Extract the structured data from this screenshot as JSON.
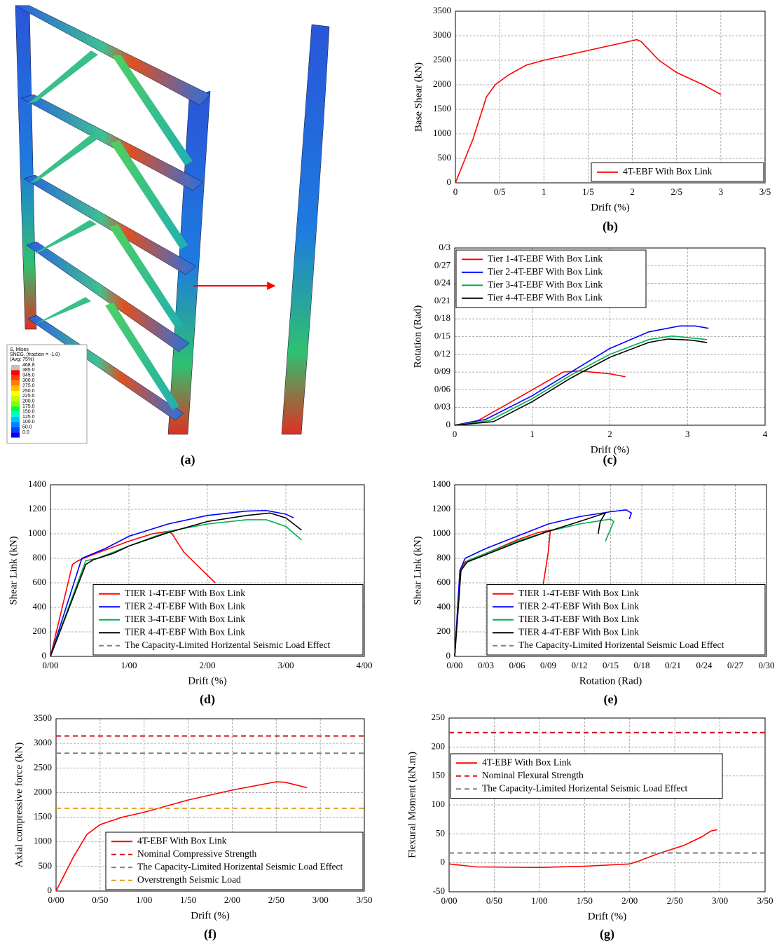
{
  "figure_a": {
    "label": "(a)",
    "legend": {
      "lines": [
        "S, Mises",
        "SNEG, (fraction = -1.0)",
        "(Avg: 75%)"
      ],
      "levels": [
        "468.8",
        "385.0",
        "345.0",
        "300.0",
        "275.0",
        "250.0",
        "225.0",
        "200.0",
        "175.0",
        "150.0",
        "125.0",
        "100.0",
        "50.0",
        "0.0"
      ]
    }
  },
  "chart_data": [
    {
      "type": "line",
      "label": "(b)",
      "xlabel": "Drift (%)",
      "ylabel": "Base Shear (kN)",
      "grid": true,
      "legend": "lower right",
      "xlim": [
        0,
        3.5
      ],
      "xticks": [
        0,
        {
          "value": 0.5,
          "label": "0/5"
        },
        1,
        {
          "value": 1.5,
          "label": "1/5"
        },
        2,
        {
          "value": 2.5,
          "label": "2/5"
        },
        3,
        {
          "value": 3.5,
          "label": "3/5"
        }
      ],
      "ylim": [
        0,
        3500
      ],
      "yticks": [
        0,
        500,
        1000,
        1500,
        2000,
        2500,
        3000,
        3500
      ],
      "series": [
        {
          "name": "4T-EBF With Box Link",
          "color": "#ff0000",
          "x": [
            0,
            0.2,
            0.35,
            0.45,
            0.6,
            0.8,
            1,
            1.5,
            2,
            2.05,
            2.1,
            2.3,
            2.5,
            2.8,
            3
          ],
          "values": [
            0,
            900,
            1750,
            2000,
            2200,
            2400,
            2500,
            2700,
            2900,
            2920,
            2880,
            2500,
            2250,
            2000,
            1800
          ]
        }
      ]
    },
    {
      "type": "line",
      "label": "(c)",
      "xlabel": "Drift (%)",
      "ylabel": "Rotation (Rad)",
      "grid": true,
      "legend": "upper left",
      "xlim": [
        0,
        4
      ],
      "xticks": [
        0,
        1,
        2,
        3,
        4
      ],
      "ylim": [
        0,
        0.3
      ],
      "yticks": [
        0,
        {
          "value": 0.03,
          "label": "0/03"
        },
        {
          "value": 0.06,
          "label": "0/06"
        },
        {
          "value": 0.09,
          "label": "0/09"
        },
        {
          "value": 0.12,
          "label": "0/12"
        },
        {
          "value": 0.15,
          "label": "0/15"
        },
        {
          "value": 0.18,
          "label": "0/18"
        },
        {
          "value": 0.21,
          "label": "0/21"
        },
        {
          "value": 0.24,
          "label": "0/24"
        },
        {
          "value": 0.27,
          "label": "0/27"
        },
        {
          "value": 0.3,
          "label": "0/3"
        }
      ],
      "series": [
        {
          "name": "Tier 1-4T-EBF With Box Link",
          "color": "#ff0000",
          "x": [
            0,
            0.3,
            0.6,
            1,
            1.4,
            1.6,
            2,
            2.2
          ],
          "values": [
            0,
            0.008,
            0.03,
            0.06,
            0.09,
            0.092,
            0.087,
            0.082
          ]
        },
        {
          "name": "Tier 2-4T-EBF With Box Link",
          "color": "#0000ff",
          "x": [
            0,
            0.4,
            1,
            1.5,
            2,
            2.5,
            2.9,
            3.1,
            3.27
          ],
          "values": [
            0,
            0.01,
            0.05,
            0.09,
            0.13,
            0.158,
            0.168,
            0.168,
            0.164
          ]
        },
        {
          "name": "Tier 3-4T-EBF With Box Link",
          "color": "#00b050",
          "x": [
            0,
            0.45,
            1,
            1.5,
            2,
            2.5,
            2.8,
            3.25
          ],
          "values": [
            0,
            0.008,
            0.045,
            0.085,
            0.12,
            0.145,
            0.151,
            0.145
          ]
        },
        {
          "name": "Tier 4-4T-EBF With Box Link",
          "color": "#000000",
          "x": [
            0,
            0.5,
            1,
            1.5,
            2,
            2.5,
            2.75,
            3.05,
            3.25
          ],
          "values": [
            0,
            0.006,
            0.04,
            0.08,
            0.115,
            0.14,
            0.146,
            0.144,
            0.14
          ]
        }
      ]
    },
    {
      "type": "line",
      "label": "(d)",
      "xlabel": "Drift (%)",
      "ylabel": "Shear Link (kN)",
      "grid": true,
      "legend": "lower right",
      "xlim": [
        0,
        4
      ],
      "xticks": [
        {
          "value": 0,
          "label": "0/00"
        },
        {
          "value": 1,
          "label": "1/00"
        },
        {
          "value": 2,
          "label": "2/00"
        },
        {
          "value": 3,
          "label": "3/00"
        },
        {
          "value": 4,
          "label": "4/00"
        }
      ],
      "ylim": [
        0,
        1400
      ],
      "yticks": [
        0,
        200,
        400,
        600,
        800,
        1000,
        1200,
        1400
      ],
      "series": [
        {
          "name": "TIER 1-4T-EBF With Box Link",
          "color": "#ff0000",
          "x": [
            0,
            0.15,
            0.28,
            0.35,
            0.5,
            1,
            1.3,
            1.5,
            1.55,
            1.7,
            2.1
          ],
          "values": [
            0,
            400,
            750,
            780,
            820,
            940,
            1000,
            1020,
            1000,
            850,
            600
          ]
        },
        {
          "name": "TIER 2-4T-EBF With Box Link",
          "color": "#0000ff",
          "x": [
            0,
            0.4,
            0.7,
            1,
            1.5,
            2,
            2.5,
            2.75,
            3,
            3.1
          ],
          "values": [
            0,
            800,
            880,
            980,
            1080,
            1150,
            1185,
            1190,
            1160,
            1130
          ]
        },
        {
          "name": "TIER 3-4T-EBF With Box Link",
          "color": "#00b050",
          "x": [
            0,
            0.45,
            0.6,
            1,
            1.5,
            2,
            2.5,
            2.75,
            3,
            3.2
          ],
          "values": [
            0,
            780,
            800,
            900,
            1020,
            1080,
            1115,
            1115,
            1060,
            950
          ]
        },
        {
          "name": "TIER 4-4T-EBF With Box Link",
          "color": "#000000",
          "x": [
            0,
            0.45,
            0.55,
            0.8,
            1,
            1.5,
            2,
            2.5,
            2.8,
            3,
            3.2
          ],
          "values": [
            0,
            750,
            790,
            840,
            900,
            1010,
            1100,
            1150,
            1170,
            1130,
            1030
          ]
        },
        {
          "name": "The Capacity-Limited Horizental Seismic Load Effect",
          "color": "#808080",
          "dash": true,
          "x": [],
          "values": []
        }
      ]
    },
    {
      "type": "line",
      "label": "(e)",
      "xlabel": "Rotation (Rad)",
      "ylabel": "Shear Link (kN)",
      "grid": true,
      "legend": "lower right",
      "xlim": [
        0,
        0.3
      ],
      "xticks": [
        {
          "value": 0,
          "label": "0/00"
        },
        {
          "value": 0.03,
          "label": "0/03"
        },
        {
          "value": 0.06,
          "label": "0/06"
        },
        {
          "value": 0.09,
          "label": "0/09"
        },
        {
          "value": 0.12,
          "label": "0/12"
        },
        {
          "value": 0.15,
          "label": "0/15"
        },
        {
          "value": 0.18,
          "label": "0/18"
        },
        {
          "value": 0.21,
          "label": "0/21"
        },
        {
          "value": 0.24,
          "label": "0/24"
        },
        {
          "value": 0.27,
          "label": "0/27"
        },
        {
          "value": 0.3,
          "label": "0/30"
        }
      ],
      "ylim": [
        0,
        1400
      ],
      "yticks": [
        0,
        200,
        400,
        600,
        800,
        1000,
        1200,
        1400
      ],
      "series": [
        {
          "name": "TIER 1-4T-EBF With Box Link",
          "color": "#ff0000",
          "x": [
            0,
            0.005,
            0.01,
            0.03,
            0.06,
            0.08,
            0.092,
            0.09,
            0.085
          ],
          "values": [
            0,
            700,
            770,
            840,
            950,
            1010,
            1030,
            850,
            580
          ]
        },
        {
          "name": "TIER 2-4T-EBF With Box Link",
          "color": "#0000ff",
          "x": [
            0,
            0.005,
            0.01,
            0.03,
            0.06,
            0.09,
            0.12,
            0.15,
            0.165,
            0.17,
            0.168
          ],
          "values": [
            0,
            700,
            800,
            880,
            980,
            1080,
            1140,
            1180,
            1195,
            1170,
            1120
          ]
        },
        {
          "name": "TIER 3-4T-EBF With Box Link",
          "color": "#00b050",
          "x": [
            0,
            0.006,
            0.012,
            0.03,
            0.06,
            0.09,
            0.12,
            0.15,
            0.153,
            0.145
          ],
          "values": [
            0,
            700,
            780,
            840,
            940,
            1020,
            1080,
            1120,
            1100,
            940
          ]
        },
        {
          "name": "TIER 4-4T-EBF With Box Link",
          "color": "#000000",
          "x": [
            0,
            0.006,
            0.012,
            0.03,
            0.06,
            0.09,
            0.12,
            0.145,
            0.14,
            0.138
          ],
          "values": [
            0,
            700,
            770,
            830,
            930,
            1020,
            1100,
            1170,
            1100,
            1000
          ]
        },
        {
          "name": "The Capacity-Limited Horizental Seismic Load Effect",
          "color": "#808080",
          "dash": true,
          "x": [],
          "values": []
        }
      ]
    },
    {
      "type": "line",
      "label": "(f)",
      "xlabel": "Drift (%)",
      "ylabel": "Axial compressive force (kN)",
      "grid": true,
      "legend": "lower right",
      "xlim": [
        0,
        3.5
      ],
      "xticks": [
        {
          "value": 0,
          "label": "0/00"
        },
        {
          "value": 0.5,
          "label": "0/50"
        },
        {
          "value": 1,
          "label": "1/00"
        },
        {
          "value": 1.5,
          "label": "1/50"
        },
        {
          "value": 2,
          "label": "2/00"
        },
        {
          "value": 2.5,
          "label": "2/50"
        },
        {
          "value": 3,
          "label": "3/00"
        },
        {
          "value": 3.5,
          "label": "3/50"
        }
      ],
      "ylim": [
        0,
        3500
      ],
      "yticks": [
        0,
        500,
        1000,
        1500,
        2000,
        2500,
        3000,
        3500
      ],
      "series": [
        {
          "name": "4T-EBF With Box Link",
          "color": "#ff0000",
          "x": [
            0,
            0.2,
            0.35,
            0.5,
            0.75,
            1,
            1.5,
            2,
            2.5,
            2.6,
            2.85
          ],
          "values": [
            0,
            700,
            1150,
            1350,
            1500,
            1600,
            1850,
            2050,
            2220,
            2210,
            2100
          ]
        },
        {
          "name": "Nominal Compressive Strength",
          "color": "#d0101a",
          "dash": true,
          "x": [
            0,
            3.5
          ],
          "values": [
            3150,
            3150
          ]
        },
        {
          "name": "The Capacity-Limited Horizental Seismic Load Effect",
          "color": "#808080",
          "dash": true,
          "x": [
            0,
            3.5
          ],
          "values": [
            2800,
            2800
          ]
        },
        {
          "name": "Overstrength Seismic Load",
          "color": "#e0a020",
          "dash": true,
          "x": [
            0,
            3.5
          ],
          "values": [
            1680,
            1680
          ]
        }
      ]
    },
    {
      "type": "line",
      "label": "(g)",
      "xlabel": "Drift (%)",
      "ylabel": "Flexural Moment (kN.m)",
      "grid": true,
      "legend": "upper left",
      "xlim": [
        0,
        3.5
      ],
      "xticks": [
        {
          "value": 0,
          "label": "0/00"
        },
        {
          "value": 0.5,
          "label": "0/50"
        },
        {
          "value": 1,
          "label": "1/00"
        },
        {
          "value": 1.5,
          "label": "1/50"
        },
        {
          "value": 2,
          "label": "2/00"
        },
        {
          "value": 2.5,
          "label": "2/50"
        },
        {
          "value": 3,
          "label": "3/00"
        },
        {
          "value": 3.5,
          "label": "3/50"
        }
      ],
      "ylim": [
        -50,
        250
      ],
      "yticks": [
        -50,
        0,
        50,
        100,
        150,
        200,
        250
      ],
      "series": [
        {
          "name": "4T-EBF With Box Link",
          "color": "#ff0000",
          "x": [
            0,
            0.3,
            1,
            1.5,
            2,
            2.1,
            2.3,
            2.6,
            2.8,
            2.9,
            2.97
          ],
          "values": [
            -2,
            -7,
            -8,
            -6,
            -2,
            3,
            15,
            30,
            45,
            55,
            57
          ]
        },
        {
          "name": "Nominal Flexural Strength",
          "color": "#d0101a",
          "dash": true,
          "x": [
            0,
            3.5
          ],
          "values": [
            225,
            225
          ]
        },
        {
          "name": "The Capacity-Limited Horizental Seismic Load Effect",
          "color": "#808080",
          "dash": true,
          "x": [
            0,
            3.5
          ],
          "values": [
            17,
            17
          ]
        }
      ]
    }
  ]
}
